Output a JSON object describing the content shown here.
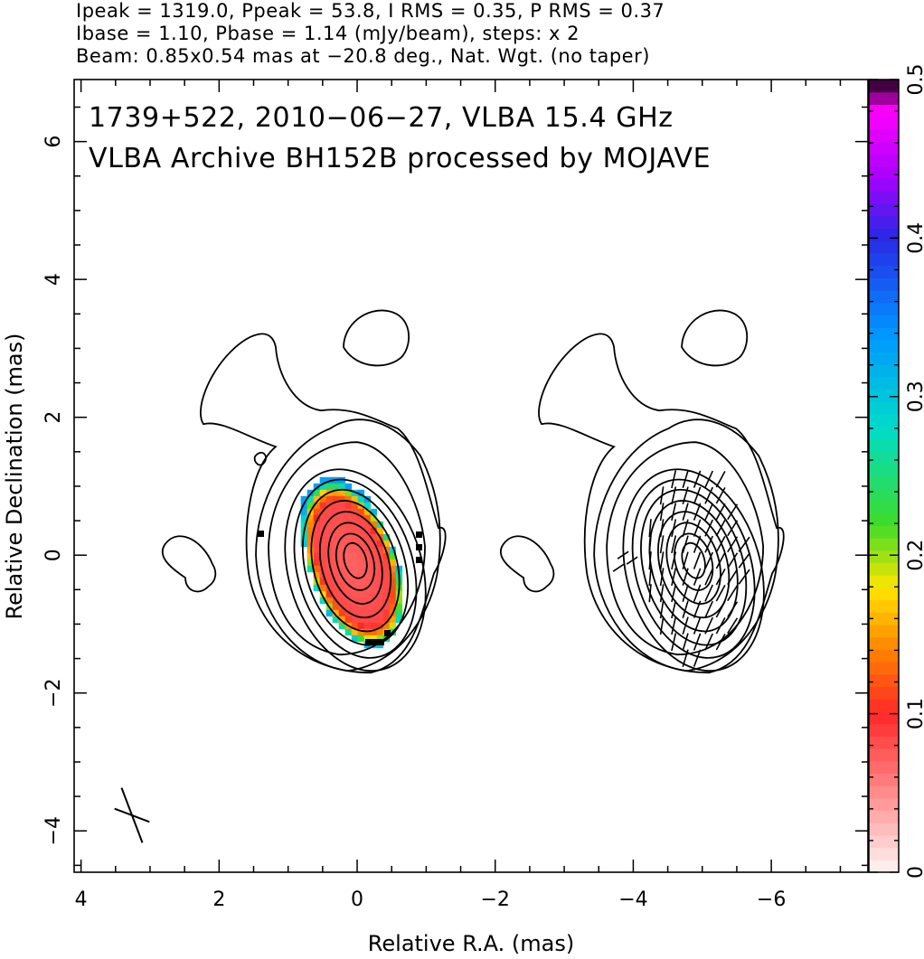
{
  "header": {
    "line1": "Ipeak = 1319.0, Ppeak = 53.8, I RMS = 0.35, P RMS = 0.37",
    "line2": "Ibase = 1.10, Pbase = 1.14 (mJy/beam), steps: x 2",
    "line3": "Beam: 0.85x0.54 mas at −20.8 deg., Nat. Wgt. (no taper)"
  },
  "chart_data": {
    "type": "heatmap",
    "title_line1": "1739+522, 2010−06−27, VLBA 15.4 GHz",
    "title_line2": "VLBA Archive BH152B processed by MOJAVE",
    "xlabel": "Relative R.A. (mas)",
    "ylabel": "Relative Declination (mas)",
    "xlim": [
      4.1,
      -7.4
    ],
    "ylim": [
      -4.6,
      6.9
    ],
    "x_ticks": [
      {
        "v": 4,
        "label": "4"
      },
      {
        "v": 2,
        "label": "2"
      },
      {
        "v": 0,
        "label": "0"
      },
      {
        "v": -2,
        "label": "−2"
      },
      {
        "v": -4,
        "label": "−4"
      },
      {
        "v": -6,
        "label": "−6"
      }
    ],
    "y_ticks": [
      {
        "v": -4,
        "label": "−4"
      },
      {
        "v": -2,
        "label": "−2"
      },
      {
        "v": 0,
        "label": "0"
      },
      {
        "v": 2,
        "label": "2"
      },
      {
        "v": 4,
        "label": "4"
      },
      {
        "v": 6,
        "label": "6"
      }
    ],
    "colorbar": {
      "range": [
        0,
        0.5
      ],
      "ticks": [
        {
          "v": 0,
          "label": "0"
        },
        {
          "v": 0.1,
          "label": "0.1"
        },
        {
          "v": 0.2,
          "label": "0.2"
        },
        {
          "v": 0.3,
          "label": "0.3"
        },
        {
          "v": 0.4,
          "label": "0.4"
        },
        {
          "v": 0.5,
          "label": "0.5"
        }
      ]
    },
    "panels": [
      {
        "name": "fractional polarization",
        "center_ra": 0
      },
      {
        "name": "EVPA vectors",
        "center_ra": -4.9
      }
    ],
    "beam": {
      "major_mas": 0.85,
      "minor_mas": 0.54,
      "pa_deg": -20.8
    },
    "contour_base_mjy": 1.1,
    "contour_step_factor": 2,
    "peak_mjy": 1319.0,
    "grid": false,
    "legend": "colorbar-right"
  }
}
